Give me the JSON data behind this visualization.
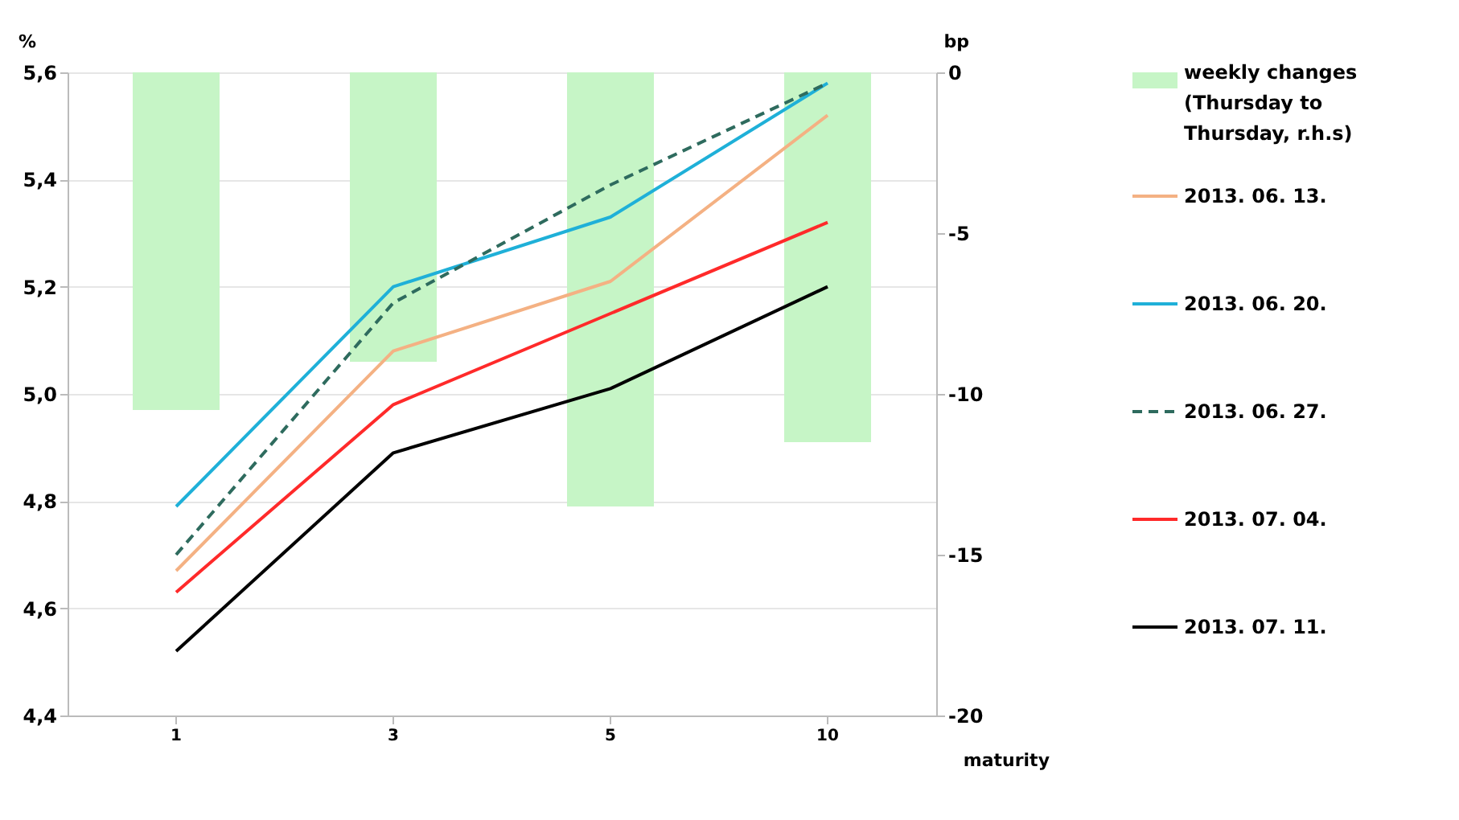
{
  "chart_data": {
    "type": "line",
    "xlabel": "maturity",
    "ylabel": "%",
    "y2label": "bp",
    "categories": [
      "1",
      "3",
      "5",
      "10"
    ],
    "series": [
      {
        "name": "weekly changes (Thursday to Thursday, r.h.s)",
        "type": "bar",
        "axis": "y2",
        "color": "#c6f5c6",
        "values": [
          -10.5,
          -9,
          -13.5,
          -11.5
        ]
      },
      {
        "name": "2013. 06. 13.",
        "color": "#f4b183",
        "values": [
          4.67,
          5.08,
          5.21,
          5.52
        ]
      },
      {
        "name": "2013. 06. 20.",
        "color": "#1fb0d8",
        "values": [
          4.79,
          5.2,
          5.33,
          5.58
        ]
      },
      {
        "name": "2013. 06. 27.",
        "color": "#2e6b5e",
        "line_style": "dashed",
        "values": [
          4.7,
          5.17,
          5.39,
          5.58
        ]
      },
      {
        "name": "2013. 07. 04.",
        "color": "#ff2a2a",
        "values": [
          4.63,
          4.98,
          5.15,
          5.32
        ]
      },
      {
        "name": "2013. 07. 11.",
        "color": "#000000",
        "values": [
          4.52,
          4.89,
          5.01,
          5.2
        ]
      }
    ],
    "ylim": [
      4.4,
      5.6
    ],
    "yticks": [
      {
        "value": 4.4,
        "label": "4,4"
      },
      {
        "value": 4.6,
        "label": "4,6"
      },
      {
        "value": 4.8,
        "label": "4,8"
      },
      {
        "value": 5.0,
        "label": "5,0"
      },
      {
        "value": 5.2,
        "label": "5,2"
      },
      {
        "value": 5.4,
        "label": "5,4"
      },
      {
        "value": 5.6,
        "label": "5,6"
      }
    ],
    "y2lim": [
      -20,
      0
    ],
    "y2ticks": [
      -20,
      -15,
      -10,
      -5,
      0
    ],
    "grid": "y",
    "legend": "right"
  }
}
